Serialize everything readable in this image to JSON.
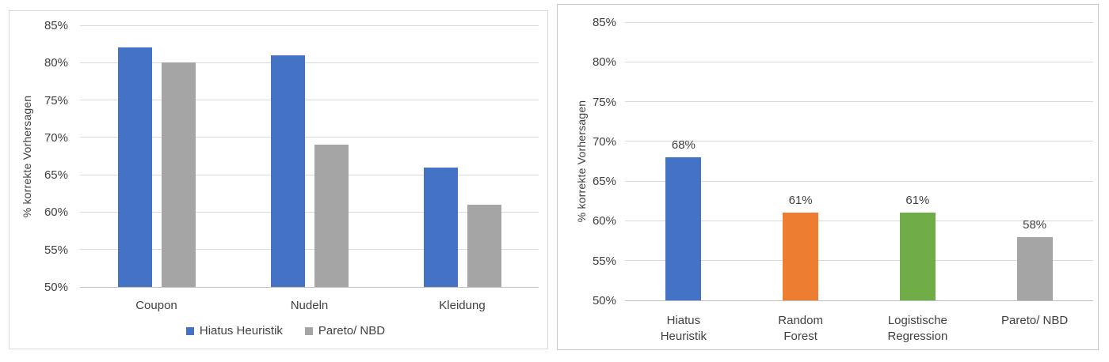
{
  "page": {
    "background_color": "#ffffff",
    "text_color": "#404040",
    "gridline_color": "#D9D9D9",
    "axisline_color": "#BFBFBF"
  },
  "chart_data": [
    {
      "type": "bar",
      "title": "",
      "categories": [
        "Coupon",
        "Nudeln",
        "Kleidung"
      ],
      "series": [
        {
          "name": "Hiatus Heuristik",
          "color": "#4472C4",
          "values": [
            82,
            81,
            66
          ]
        },
        {
          "name": "Pareto/ NBD",
          "color": "#A5A5A5",
          "values": [
            80,
            69,
            61
          ]
        }
      ],
      "xlabel": "",
      "ylabel": "% korrekte Vorhersagen",
      "ylim": [
        50,
        85
      ],
      "yticks": [
        "85%",
        "80%",
        "75%",
        "70%",
        "65%",
        "60%",
        "55%",
        "50%"
      ],
      "grid": true,
      "legend": true,
      "legend_position": "bottom",
      "data_labels": null
    },
    {
      "type": "bar",
      "title": "",
      "categories": [
        "Hiatus Heuristik",
        "Random Forest",
        "Logistische Regression",
        "Pareto/ NBD"
      ],
      "category_label_lines": [
        [
          "Hiatus",
          "Heuristik"
        ],
        [
          "Random",
          "Forest"
        ],
        [
          "Logistische",
          "Regression"
        ],
        [
          "Pareto/ NBD"
        ]
      ],
      "series": [
        {
          "name": "",
          "values": [
            68,
            61,
            61,
            58
          ]
        }
      ],
      "bar_colors": [
        "#4472C4",
        "#ED7D31",
        "#70AD47",
        "#A5A5A5"
      ],
      "data_labels": [
        "68%",
        "61%",
        "61%",
        "58%"
      ],
      "xlabel": "",
      "ylabel": "% korrekte Vorhersagen",
      "ylim": [
        50,
        85
      ],
      "yticks": [
        "85%",
        "80%",
        "75%",
        "70%",
        "65%",
        "60%",
        "55%",
        "50%"
      ],
      "grid": true,
      "legend": false,
      "legend_position": null
    }
  ]
}
